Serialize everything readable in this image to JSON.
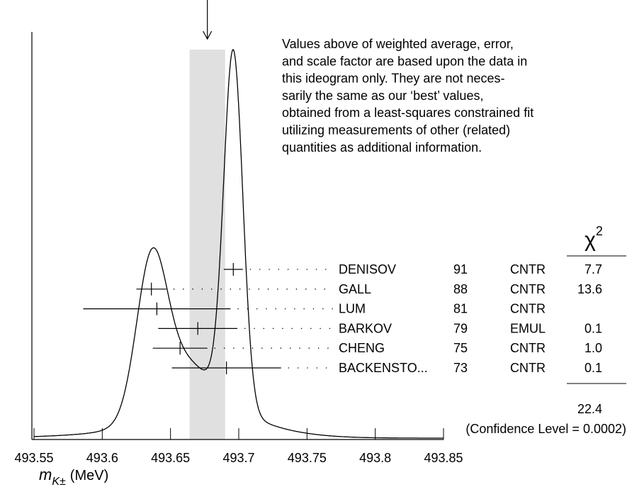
{
  "chart_data": {
    "type": "ideogram",
    "note_lines": [
      "Values above of weighted average, error,",
      "and scale factor are based upon the data in",
      "this ideogram only.  They are not neces-",
      "sarily the same as our ‘best’ values,",
      "obtained from a least-squares constrained fit",
      "utilizing measurements of other (related)",
      "quantities as additional information."
    ],
    "xlim": [
      493.55,
      493.85
    ],
    "xticks": [
      493.55,
      493.6,
      493.65,
      493.7,
      493.75,
      493.8,
      493.85
    ],
    "x_label": {
      "symbol": "m",
      "subscript": "K±",
      "unit": "(MeV)"
    },
    "weighted_average": {
      "value": 493.677,
      "error": 0.013
    },
    "categories": [
      "DENISOV",
      "GALL",
      "LUM",
      "BARKOV",
      "CHENG",
      "BACKENSTO..."
    ],
    "years": [
      91,
      88,
      81,
      79,
      75,
      73
    ],
    "techniques": [
      "CNTR",
      "CNTR",
      "CNTR",
      "EMUL",
      "CNTR",
      "CNTR"
    ],
    "values": [
      493.696,
      493.636,
      493.64,
      493.67,
      493.657,
      493.691
    ],
    "errors": [
      0.007,
      0.011,
      0.054,
      0.029,
      0.02,
      0.04
    ],
    "chi2": [
      7.7,
      13.6,
      null,
      0.1,
      1.0,
      0.1
    ],
    "chi2_labels": [
      "7.7",
      "13.6",
      null,
      "0.1",
      "1.0",
      "0.1"
    ],
    "chi2_symbol": "χ",
    "chi2_power": "2",
    "chi2_total": 22.4,
    "confidence_level_text": "(Confidence Level = 0.0002)",
    "band_color": "#e0e0e0",
    "color": "#000000"
  }
}
